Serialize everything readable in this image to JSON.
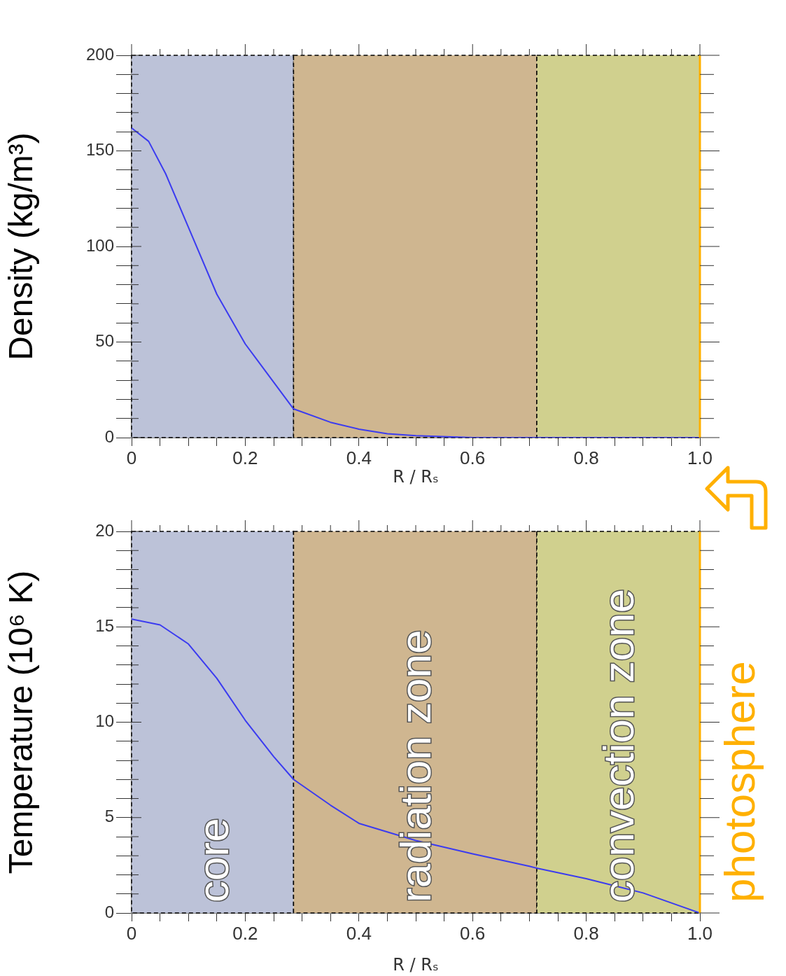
{
  "chart_data": [
    {
      "type": "line",
      "ylabel": "Density (kg/m³)",
      "xlabel": "R / Rₛ",
      "series": [
        {
          "color": "#3b3bf0",
          "x": [
            0,
            0.03,
            0.06,
            0.1,
            0.15,
            0.2,
            0.25,
            0.285,
            0.35,
            0.4,
            0.45,
            0.5,
            0.6,
            0.7,
            0.8,
            0.9,
            1.0
          ],
          "values": [
            162,
            155,
            138,
            110,
            75,
            49,
            29,
            15,
            8,
            4.4,
            2,
            1,
            0,
            0,
            0,
            0,
            0
          ]
        }
      ],
      "xlim": [
        0,
        1.0
      ],
      "ylim": [
        0,
        200
      ],
      "xticks": [
        0,
        {
          "value": 0.05,
          "label": null
        },
        {
          "value": 0.1,
          "label": null
        },
        {
          "value": 0.15,
          "label": null
        },
        0.2,
        {
          "value": 0.25,
          "label": null
        },
        {
          "value": 0.3,
          "label": null
        },
        {
          "value": 0.35,
          "label": null
        },
        0.4,
        {
          "value": 0.45,
          "label": null
        },
        {
          "value": 0.5,
          "label": null
        },
        {
          "value": 0.55,
          "label": null
        },
        0.6,
        {
          "value": 0.65,
          "label": null
        },
        {
          "value": 0.7,
          "label": null
        },
        {
          "value": 0.75,
          "label": null
        },
        0.8,
        {
          "value": 0.85,
          "label": null
        },
        {
          "value": 0.9,
          "label": null
        },
        {
          "value": 0.95,
          "label": null
        },
        {
          "value": 1.0,
          "label": "1.0"
        }
      ],
      "yticks": [
        0,
        {
          "value": 10,
          "label": null
        },
        {
          "value": 20,
          "label": null
        },
        {
          "value": 30,
          "label": null
        },
        {
          "value": 40,
          "label": null
        },
        50,
        {
          "value": 60,
          "label": null
        },
        {
          "value": 70,
          "label": null
        },
        {
          "value": 80,
          "label": null
        },
        {
          "value": 90,
          "label": null
        },
        100,
        {
          "value": 110,
          "label": null
        },
        {
          "value": 120,
          "label": null
        },
        {
          "value": 130,
          "label": null
        },
        {
          "value": 140,
          "label": null
        },
        150,
        {
          "value": 160,
          "label": null
        },
        {
          "value": 170,
          "label": null
        },
        {
          "value": 180,
          "label": null
        },
        {
          "value": 190,
          "label": null
        },
        200
      ],
      "bands": [
        {
          "axis": "x",
          "from": 0,
          "to": 0.285,
          "color": "#bcc2d8"
        },
        {
          "axis": "x",
          "from": 0.285,
          "to": 0.713,
          "color": "#cfb690"
        },
        {
          "axis": "x",
          "from": 0.713,
          "to": 1.0,
          "color": "#d0d08e"
        }
      ],
      "ref_lines": [
        {
          "axis": "x",
          "value": 1.0,
          "color": "#ffb000"
        }
      ],
      "grid": false,
      "legend": false,
      "marker": "none",
      "line_style": "solid"
    },
    {
      "type": "line",
      "ylabel": "Temperature (10⁶ K)",
      "xlabel": "R / Rₛ",
      "series": [
        {
          "color": "#3b3bf0",
          "x": [
            0,
            0.05,
            0.1,
            0.15,
            0.2,
            0.25,
            0.285,
            0.35,
            0.4,
            0.5,
            0.6,
            0.7,
            0.713,
            0.8,
            0.9,
            1.0
          ],
          "values": [
            15.4,
            15.1,
            14.1,
            12.3,
            10.1,
            8.2,
            7.0,
            5.65,
            4.7,
            3.8,
            3.1,
            2.45,
            2.35,
            1.8,
            1.05,
            0
          ]
        }
      ],
      "xlim": [
        0,
        1.0
      ],
      "ylim": [
        0,
        20
      ],
      "xticks": [
        0,
        {
          "value": 0.05,
          "label": null
        },
        {
          "value": 0.1,
          "label": null
        },
        {
          "value": 0.15,
          "label": null
        },
        0.2,
        {
          "value": 0.25,
          "label": null
        },
        {
          "value": 0.3,
          "label": null
        },
        {
          "value": 0.35,
          "label": null
        },
        0.4,
        {
          "value": 0.45,
          "label": null
        },
        {
          "value": 0.5,
          "label": null
        },
        {
          "value": 0.55,
          "label": null
        },
        0.6,
        {
          "value": 0.65,
          "label": null
        },
        {
          "value": 0.7,
          "label": null
        },
        {
          "value": 0.75,
          "label": null
        },
        0.8,
        {
          "value": 0.85,
          "label": null
        },
        {
          "value": 0.9,
          "label": null
        },
        {
          "value": 0.95,
          "label": null
        },
        {
          "value": 1.0,
          "label": "1.0"
        }
      ],
      "yticks": [
        0,
        {
          "value": 1,
          "label": null
        },
        {
          "value": 2,
          "label": null
        },
        {
          "value": 3,
          "label": null
        },
        {
          "value": 4,
          "label": null
        },
        5,
        {
          "value": 6,
          "label": null
        },
        {
          "value": 7,
          "label": null
        },
        {
          "value": 8,
          "label": null
        },
        {
          "value": 9,
          "label": null
        },
        10,
        {
          "value": 11,
          "label": null
        },
        {
          "value": 12,
          "label": null
        },
        {
          "value": 13,
          "label": null
        },
        {
          "value": 14,
          "label": null
        },
        15,
        {
          "value": 16,
          "label": null
        },
        {
          "value": 17,
          "label": null
        },
        {
          "value": 18,
          "label": null
        },
        {
          "value": 19,
          "label": null
        },
        20
      ],
      "bands": [
        {
          "axis": "x",
          "from": 0,
          "to": 0.285,
          "label": "core",
          "color": "#bcc2d8"
        },
        {
          "axis": "x",
          "from": 0.285,
          "to": 0.713,
          "label": "radiation zone",
          "color": "#cfb690"
        },
        {
          "axis": "x",
          "from": 0.713,
          "to": 1.0,
          "label": "convection zone",
          "color": "#d0d08e"
        }
      ],
      "ref_lines": [
        {
          "axis": "x",
          "value": 1.0,
          "label": "photosphere",
          "color": "#ffb000"
        }
      ],
      "grid": false,
      "legend": false,
      "marker": "none",
      "line_style": "solid"
    }
  ]
}
